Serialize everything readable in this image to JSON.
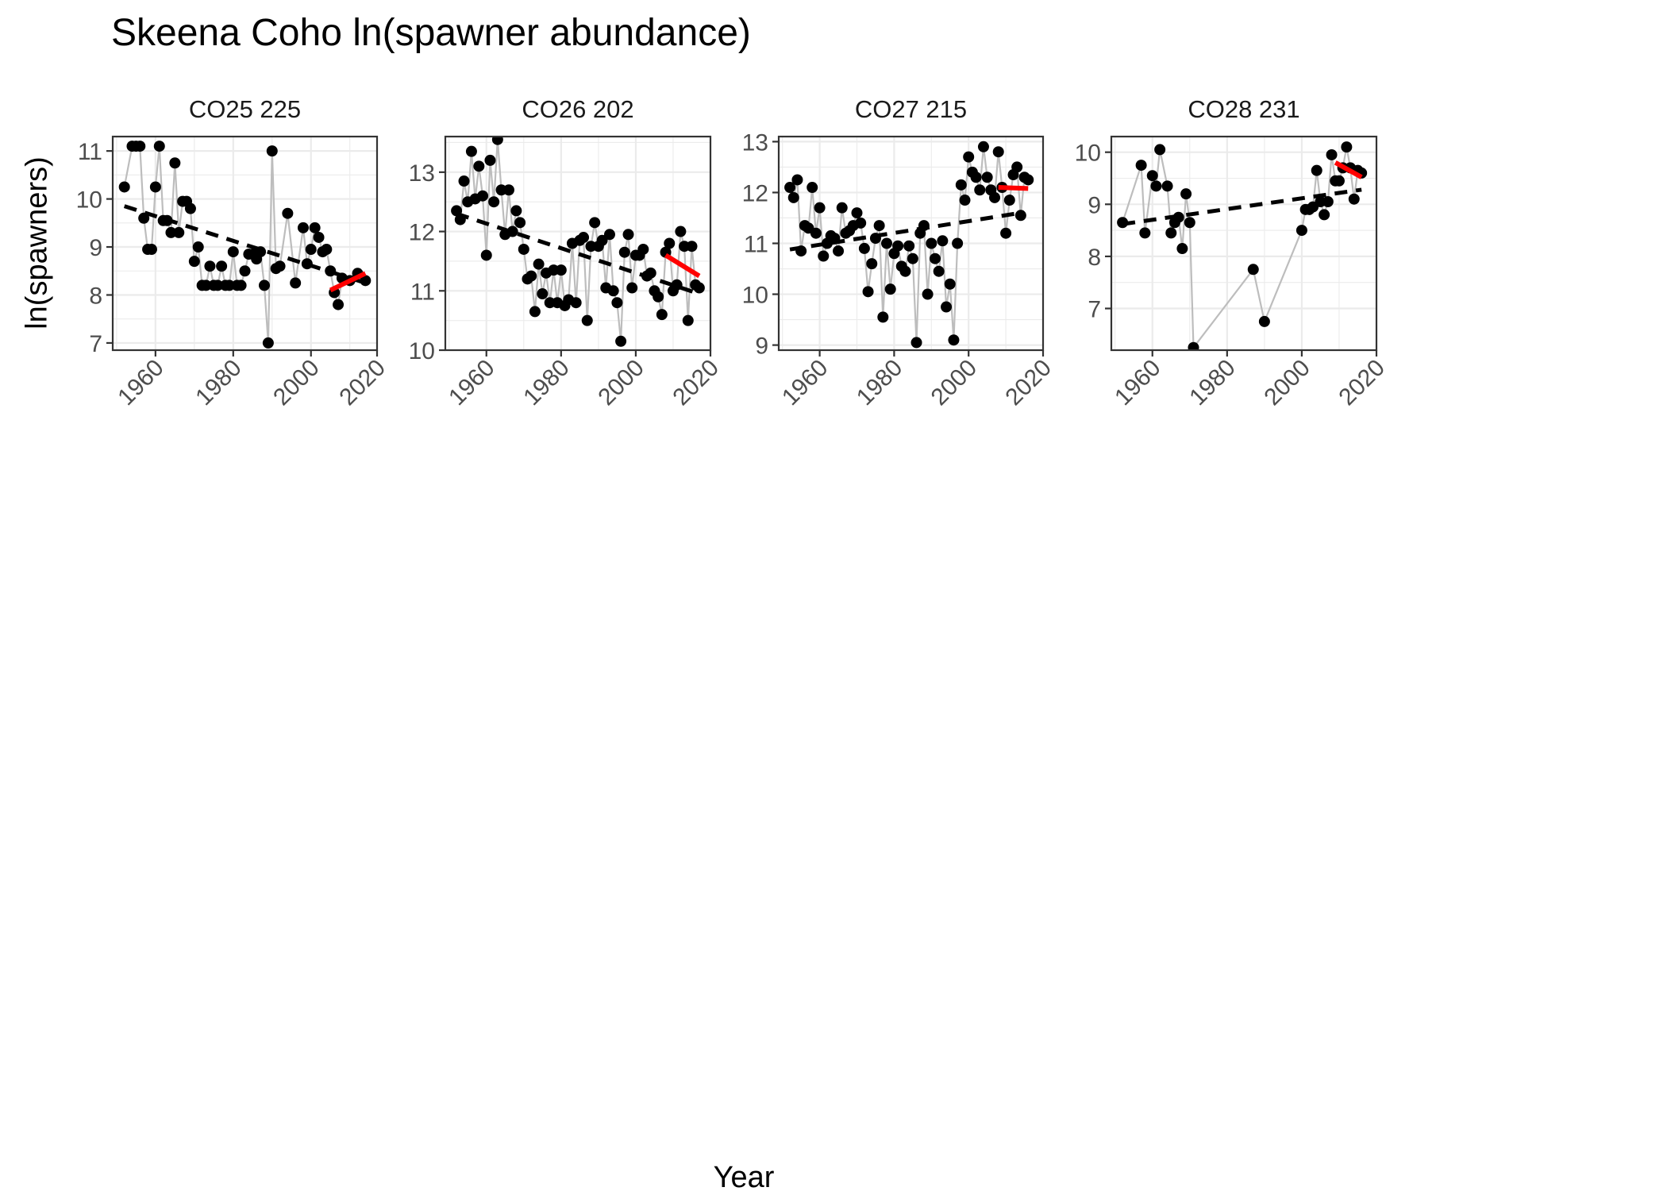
{
  "title": "Skeena Coho ln(spawner abundance)",
  "ylabel": "ln(spawners)",
  "xlabel": "Year",
  "colors": {
    "points": "#000000",
    "series_line": "#bdbdbd",
    "trend_all": "#000000",
    "trend_recent": "#ff0000",
    "grid": "#ebebeb",
    "panel_border": "#333333"
  },
  "chart_data": [
    {
      "type": "scatter",
      "facet_label": "CO25 225",
      "xlim": [
        1949,
        2017
      ],
      "xticks": [
        1960,
        1980,
        2000,
        2020
      ],
      "ylim": [
        6.85,
        11.3
      ],
      "yticks": [
        7,
        8,
        9,
        10,
        11
      ],
      "grid": true,
      "x": [
        1952,
        1954,
        1955,
        1956,
        1957,
        1958,
        1959,
        1960,
        1961,
        1962,
        1963,
        1964,
        1965,
        1966,
        1967,
        1968,
        1969,
        1970,
        1971,
        1972,
        1973,
        1974,
        1975,
        1976,
        1977,
        1978,
        1979,
        1980,
        1981,
        1982,
        1983,
        1984,
        1985,
        1986,
        1987,
        1988,
        1989,
        1990,
        1991,
        1992,
        1994,
        1996,
        1998,
        1999,
        2000,
        2001,
        2002,
        2003,
        2004,
        2005,
        2006,
        2007,
        2008,
        2010,
        2012,
        2014
      ],
      "y": [
        10.25,
        11.1,
        11.1,
        11.1,
        9.6,
        8.95,
        8.95,
        10.25,
        11.1,
        9.55,
        9.55,
        9.3,
        10.75,
        9.3,
        9.95,
        9.95,
        9.8,
        8.7,
        9.0,
        8.2,
        8.2,
        8.6,
        8.2,
        8.2,
        8.6,
        8.2,
        8.2,
        8.9,
        8.2,
        8.2,
        8.5,
        8.85,
        8.85,
        8.75,
        8.9,
        8.2,
        7.0,
        11.0,
        8.55,
        8.6,
        9.7,
        8.25,
        9.4,
        8.65,
        8.95,
        9.4,
        9.2,
        8.9,
        8.95,
        8.5,
        8.05,
        7.8,
        8.35,
        8.3,
        8.45,
        8.3
      ],
      "trend_all": {
        "x": [
          1952,
          2014
        ],
        "y": [
          9.85,
          8.25
        ]
      },
      "trend_recent": {
        "x": [
          2005,
          2014
        ],
        "y": [
          8.1,
          8.45
        ]
      }
    },
    {
      "type": "scatter",
      "facet_label": "CO26 202",
      "xlim": [
        1949,
        2020
      ],
      "xticks": [
        1960,
        1980,
        2000,
        2020
      ],
      "ylim": [
        10.0,
        13.6
      ],
      "yticks": [
        10,
        11,
        12,
        13
      ],
      "grid": true,
      "x": [
        1952,
        1953,
        1954,
        1955,
        1956,
        1957,
        1958,
        1959,
        1960,
        1961,
        1962,
        1963,
        1964,
        1965,
        1966,
        1967,
        1968,
        1969,
        1970,
        1971,
        1972,
        1973,
        1974,
        1975,
        1976,
        1977,
        1978,
        1979,
        1980,
        1981,
        1982,
        1983,
        1984,
        1985,
        1986,
        1987,
        1988,
        1989,
        1990,
        1991,
        1992,
        1993,
        1994,
        1995,
        1996,
        1997,
        1998,
        1999,
        2000,
        2001,
        2002,
        2003,
        2004,
        2005,
        2006,
        2007,
        2008,
        2009,
        2010,
        2011,
        2012,
        2013,
        2014,
        2015,
        2016,
        2017
      ],
      "y": [
        12.35,
        12.2,
        12.85,
        12.5,
        13.35,
        12.55,
        13.1,
        12.6,
        11.6,
        13.2,
        12.5,
        13.55,
        12.7,
        11.95,
        12.7,
        12.0,
        12.35,
        12.15,
        11.7,
        11.2,
        11.25,
        10.65,
        11.45,
        10.95,
        11.3,
        10.8,
        11.35,
        10.8,
        11.35,
        10.75,
        10.85,
        11.8,
        10.8,
        11.85,
        11.9,
        10.5,
        11.75,
        12.15,
        11.75,
        11.85,
        11.05,
        11.95,
        11.0,
        10.8,
        10.15,
        11.65,
        11.95,
        11.05,
        11.6,
        11.6,
        11.7,
        11.25,
        11.3,
        11.0,
        10.9,
        10.6,
        11.65,
        11.8,
        11.0,
        11.1,
        12.0,
        11.75,
        10.5,
        11.75,
        11.1,
        11.05
      ],
      "trend_all": {
        "x": [
          1952,
          2017
        ],
        "y": [
          12.3,
          10.95
        ]
      },
      "trend_recent": {
        "x": [
          2008,
          2017
        ],
        "y": [
          11.6,
          11.25
        ]
      }
    },
    {
      "type": "scatter",
      "facet_label": "CO27 215",
      "xlim": [
        1949,
        2020
      ],
      "xticks": [
        1960,
        1980,
        2000,
        2020
      ],
      "ylim": [
        8.9,
        13.1
      ],
      "yticks": [
        9,
        10,
        11,
        12,
        13
      ],
      "grid": true,
      "x": [
        1952,
        1953,
        1954,
        1955,
        1956,
        1957,
        1958,
        1959,
        1960,
        1961,
        1962,
        1963,
        1964,
        1965,
        1966,
        1967,
        1968,
        1969,
        1970,
        1971,
        1972,
        1973,
        1974,
        1975,
        1976,
        1977,
        1978,
        1979,
        1980,
        1981,
        1982,
        1983,
        1984,
        1985,
        1986,
        1987,
        1988,
        1989,
        1990,
        1991,
        1992,
        1993,
        1994,
        1995,
        1996,
        1997,
        1998,
        1999,
        2000,
        2001,
        2002,
        2003,
        2004,
        2005,
        2006,
        2007,
        2008,
        2009,
        2010,
        2011,
        2012,
        2013,
        2014,
        2015,
        2016
      ],
      "y": [
        12.1,
        11.9,
        12.25,
        10.85,
        11.35,
        11.3,
        12.1,
        11.2,
        11.7,
        10.75,
        11.0,
        11.15,
        11.1,
        10.85,
        11.7,
        11.2,
        11.25,
        11.35,
        11.6,
        11.4,
        10.9,
        10.05,
        10.6,
        11.1,
        11.35,
        9.55,
        11.0,
        10.1,
        10.8,
        10.95,
        10.55,
        10.45,
        10.95,
        10.7,
        9.05,
        11.2,
        11.35,
        10.0,
        11.0,
        10.7,
        10.45,
        11.05,
        9.75,
        10.2,
        9.1,
        11.0,
        12.15,
        11.85,
        12.7,
        12.4,
        12.3,
        12.05,
        12.9,
        12.3,
        12.05,
        11.9,
        12.8,
        12.1,
        11.2,
        11.85,
        12.35,
        12.5,
        11.55,
        12.3,
        12.25
      ],
      "trend_all": {
        "x": [
          1952,
          2014
        ],
        "y": [
          10.88,
          11.6
        ]
      },
      "trend_recent": {
        "x": [
          2008,
          2016
        ],
        "y": [
          12.1,
          12.08
        ]
      }
    },
    {
      "type": "scatter",
      "facet_label": "CO28 231",
      "xlim": [
        1949,
        2020
      ],
      "xticks": [
        1960,
        1980,
        2000,
        2020
      ],
      "ylim": [
        6.2,
        10.3
      ],
      "yticks": [
        7,
        8,
        9,
        10
      ],
      "grid": true,
      "x": [
        1952,
        1957,
        1958,
        1960,
        1961,
        1962,
        1964,
        1965,
        1966,
        1967,
        1968,
        1969,
        1970,
        1971,
        1987,
        1990,
        2000,
        2001,
        2002,
        2003,
        2004,
        2005,
        2006,
        2007,
        2008,
        2009,
        2010,
        2011,
        2012,
        2013,
        2014,
        2015,
        2016
      ],
      "y": [
        8.65,
        9.75,
        8.45,
        9.55,
        9.35,
        10.05,
        9.35,
        8.45,
        8.65,
        8.75,
        8.15,
        9.2,
        8.65,
        6.25,
        7.75,
        6.75,
        8.5,
        8.9,
        8.9,
        8.95,
        9.65,
        9.05,
        8.8,
        9.05,
        9.95,
        9.45,
        9.45,
        9.7,
        10.1,
        9.7,
        9.1,
        9.65,
        9.6
      ],
      "trend_all": {
        "x": [
          1952,
          2016
        ],
        "y": [
          8.62,
          9.28
        ]
      },
      "trend_recent": {
        "x": [
          2009,
          2016
        ],
        "y": [
          9.8,
          9.52
        ]
      }
    }
  ]
}
